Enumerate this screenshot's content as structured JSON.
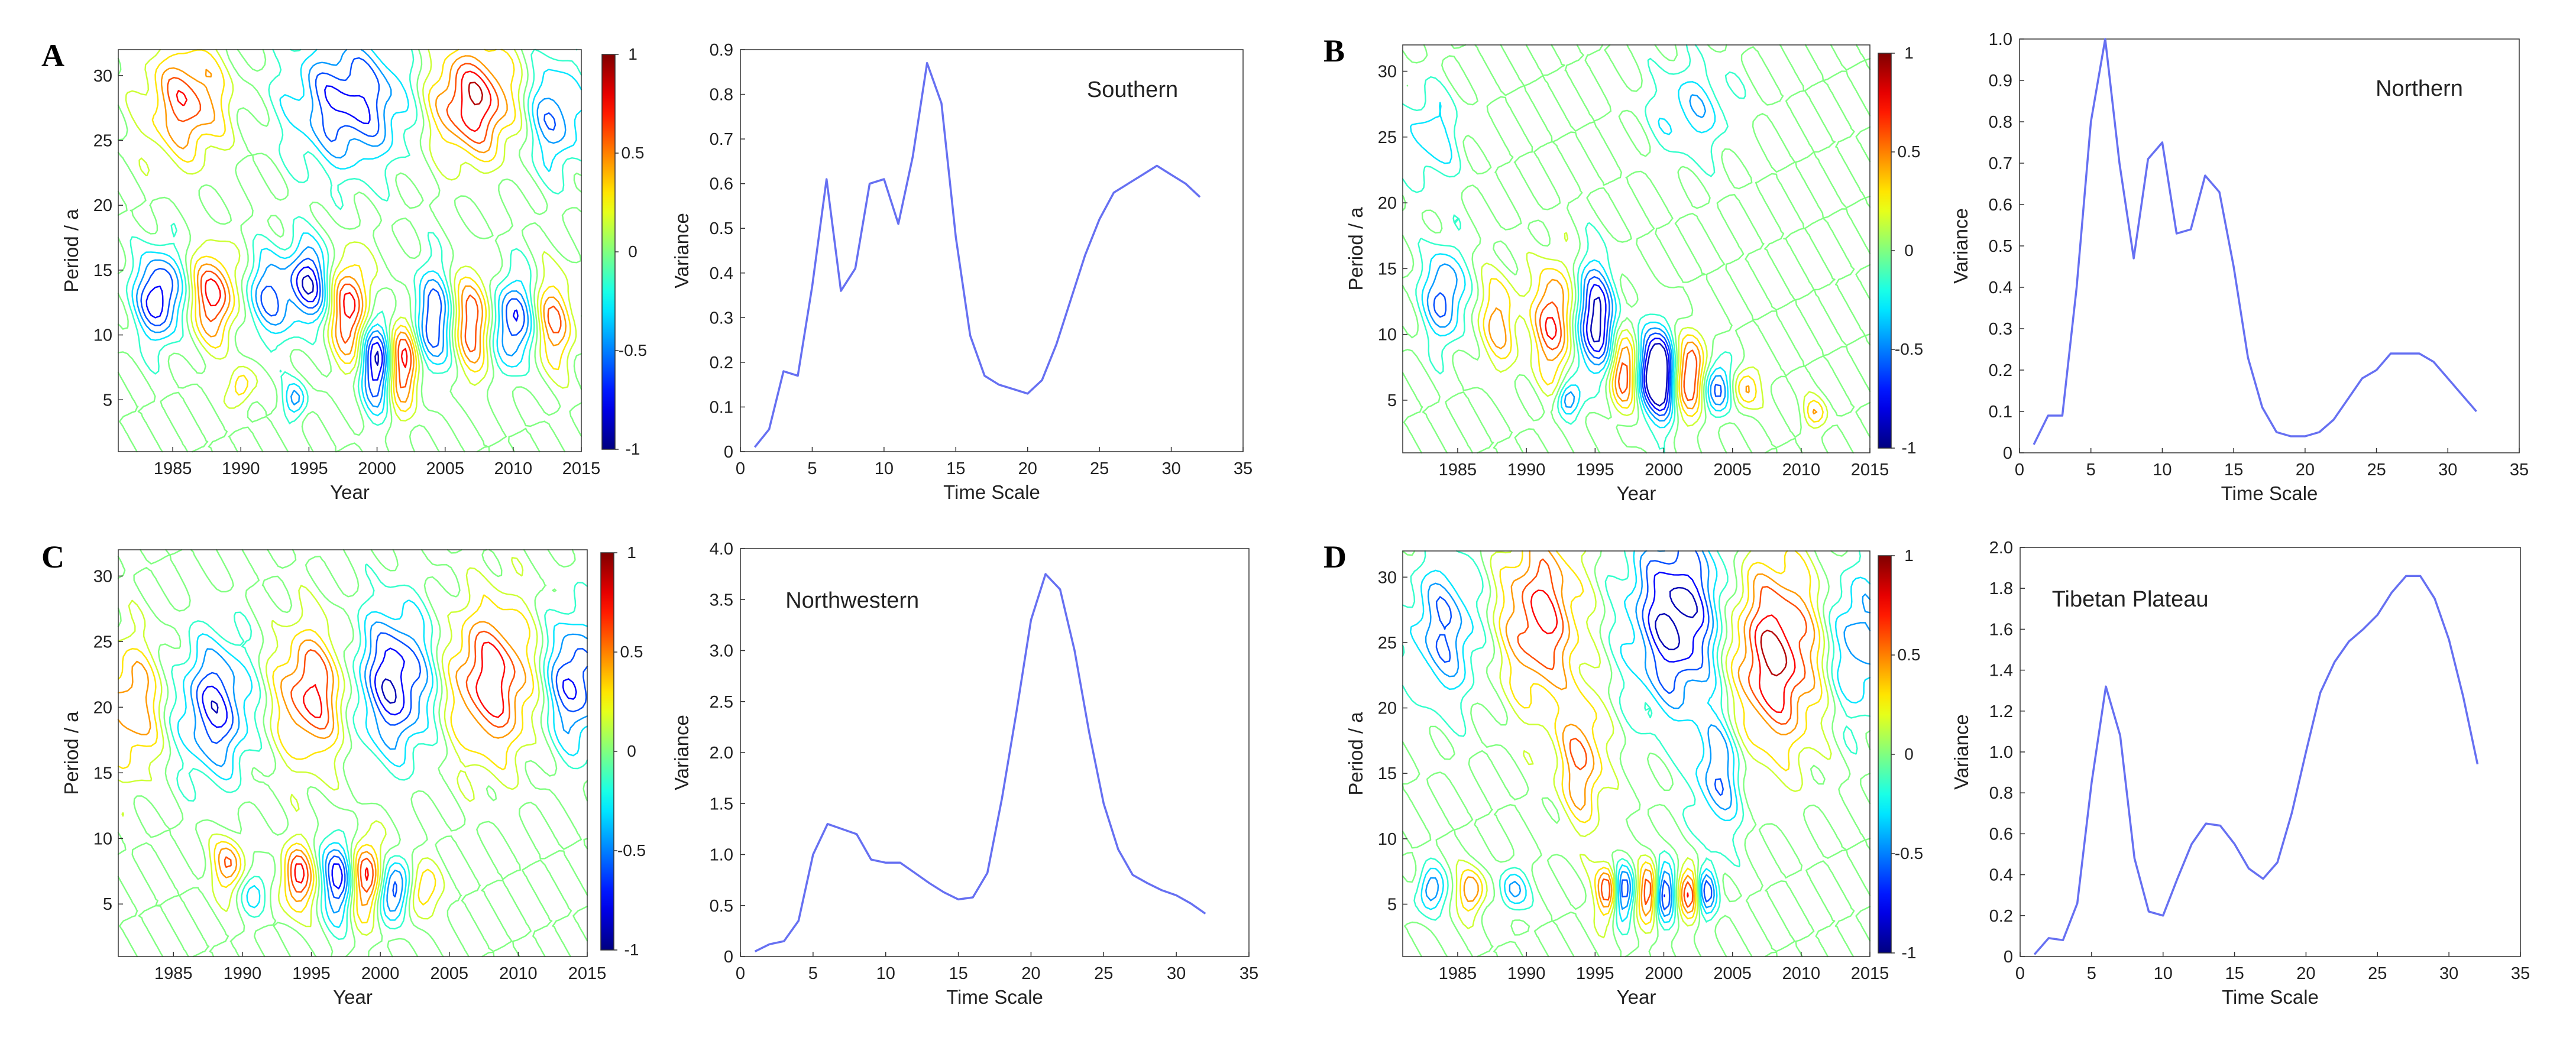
{
  "figure": {
    "panels": [
      {
        "letter": "A"
      },
      {
        "letter": "B"
      },
      {
        "letter": "C"
      },
      {
        "letter": "D"
      }
    ]
  },
  "chart_data": [
    {
      "panel": "A",
      "type": "heatmap",
      "title": "",
      "xlabel": "Year",
      "ylabel": "Period / a",
      "xlim": [
        1981,
        2015
      ],
      "ylim": [
        1,
        32
      ],
      "xticks": [
        1985,
        1990,
        1995,
        2000,
        2005,
        2010,
        2015
      ],
      "yticks": [
        5,
        10,
        15,
        20,
        25,
        30
      ],
      "colorbar": {
        "range": [
          -1,
          1
        ],
        "ticks": [
          1,
          0.5,
          0,
          -0.5,
          -1
        ],
        "tick_labels": [
          "1",
          "0.5",
          "0",
          "-0.5",
          "-1"
        ],
        "colormap": "jet"
      },
      "features": [
        {
          "x": 1984,
          "y": 13,
          "v": -0.9,
          "sx": 1.2,
          "sy": 2.4
        },
        {
          "x": 1988,
          "y": 13,
          "v": 0.8,
          "sx": 1.2,
          "sy": 2.4
        },
        {
          "x": 1992,
          "y": 13,
          "v": -0.6,
          "sx": 1.2,
          "sy": 2.4
        },
        {
          "x": 1995,
          "y": 14,
          "v": -0.85,
          "sx": 1.1,
          "sy": 2.2
        },
        {
          "x": 1998,
          "y": 12,
          "v": 0.85,
          "sx": 1.0,
          "sy": 2.8
        },
        {
          "x": 2000,
          "y": 8,
          "v": -1.0,
          "sx": 0.8,
          "sy": 2.5
        },
        {
          "x": 2002,
          "y": 8,
          "v": 0.95,
          "sx": 0.8,
          "sy": 2.5
        },
        {
          "x": 2004,
          "y": 11,
          "v": -0.8,
          "sx": 1.0,
          "sy": 2.8
        },
        {
          "x": 2007,
          "y": 11,
          "v": 0.7,
          "sx": 1.0,
          "sy": 2.8
        },
        {
          "x": 2010,
          "y": 11,
          "v": -0.8,
          "sx": 1.0,
          "sy": 2.5
        },
        {
          "x": 2013,
          "y": 11,
          "v": 0.6,
          "sx": 1.0,
          "sy": 2.5
        },
        {
          "x": 1986,
          "y": 28,
          "v": 0.7,
          "sx": 2.0,
          "sy": 3.0
        },
        {
          "x": 1998,
          "y": 28,
          "v": -0.8,
          "sx": 3.0,
          "sy": 3.5
        },
        {
          "x": 2007,
          "y": 28,
          "v": 0.9,
          "sx": 2.2,
          "sy": 3.0
        },
        {
          "x": 2013,
          "y": 27,
          "v": -0.6,
          "sx": 1.5,
          "sy": 3.0
        },
        {
          "x": 1990,
          "y": 6,
          "v": 0.5,
          "sx": 0.6,
          "sy": 1.0
        },
        {
          "x": 1994,
          "y": 5,
          "v": -0.5,
          "sx": 0.6,
          "sy": 1.0
        }
      ]
    },
    {
      "panel": "A",
      "type": "line",
      "title": "Southern",
      "xlabel": "Time Scale",
      "ylabel": "Variance",
      "xlim": [
        0,
        35
      ],
      "ylim": [
        0,
        0.9
      ],
      "xticks": [
        0,
        5,
        10,
        15,
        20,
        25,
        30,
        35
      ],
      "yticks": [
        0,
        0.1,
        0.2,
        0.3,
        0.4,
        0.5,
        0.6,
        0.7,
        0.8,
        0.9
      ],
      "ytick_labels": [
        "0",
        "0.1",
        "0.2",
        "0.3",
        "0.4",
        "0.5",
        "0.6",
        "0.7",
        "0.8",
        "0.9"
      ],
      "x": [
        1,
        2,
        3,
        4,
        5,
        6,
        7,
        8,
        9,
        10,
        11,
        12,
        13,
        14,
        15,
        16,
        17,
        18,
        19,
        20,
        21,
        22,
        23,
        24,
        25,
        26,
        27,
        28,
        29,
        30,
        31,
        32
      ],
      "values": [
        0.01,
        0.05,
        0.18,
        0.17,
        0.37,
        0.61,
        0.36,
        0.41,
        0.6,
        0.61,
        0.51,
        0.66,
        0.87,
        0.78,
        0.48,
        0.26,
        0.17,
        0.15,
        0.14,
        0.13,
        0.16,
        0.24,
        0.34,
        0.44,
        0.52,
        0.58,
        0.6,
        0.62,
        0.64,
        0.62,
        0.6,
        0.57
      ]
    },
    {
      "panel": "B",
      "type": "heatmap",
      "title": "",
      "xlabel": "Year",
      "ylabel": "Period / a",
      "xlim": [
        1981,
        2015
      ],
      "ylim": [
        1,
        32
      ],
      "xticks": [
        1985,
        1990,
        1995,
        2000,
        2005,
        2010,
        2015
      ],
      "yticks": [
        5,
        10,
        15,
        20,
        25,
        30
      ],
      "colorbar": {
        "range": [
          -1,
          1
        ],
        "ticks": [
          1,
          0.5,
          0,
          -0.5,
          -1
        ],
        "tick_labels": [
          "1",
          "0.5",
          "0",
          "-0.5",
          "-1"
        ],
        "colormap": "jet"
      },
      "features": [
        {
          "x": 1984,
          "y": 13,
          "v": -0.7,
          "sx": 1.0,
          "sy": 2.5
        },
        {
          "x": 1988,
          "y": 11,
          "v": 0.5,
          "sx": 1.0,
          "sy": 2.5
        },
        {
          "x": 1992,
          "y": 11,
          "v": 0.8,
          "sx": 1.0,
          "sy": 3.0
        },
        {
          "x": 1995,
          "y": 11,
          "v": -1.0,
          "sx": 1.0,
          "sy": 3.0
        },
        {
          "x": 1997,
          "y": 7,
          "v": 0.8,
          "sx": 0.7,
          "sy": 2.0
        },
        {
          "x": 1999,
          "y": 7,
          "v": -0.9,
          "sx": 0.7,
          "sy": 2.2
        },
        {
          "x": 2000,
          "y": 7,
          "v": -0.9,
          "sx": 0.6,
          "sy": 2.5
        },
        {
          "x": 2002,
          "y": 7,
          "v": 0.85,
          "sx": 0.7,
          "sy": 2.2
        },
        {
          "x": 2004,
          "y": 6,
          "v": -0.7,
          "sx": 0.7,
          "sy": 1.5
        },
        {
          "x": 2006,
          "y": 6,
          "v": 0.5,
          "sx": 0.7,
          "sy": 1.2
        },
        {
          "x": 1983,
          "y": 25,
          "v": -0.4,
          "sx": 1.5,
          "sy": 2.5
        },
        {
          "x": 2002,
          "y": 27,
          "v": -0.4,
          "sx": 2.0,
          "sy": 2.5
        },
        {
          "x": 1993,
          "y": 5,
          "v": -0.6,
          "sx": 0.6,
          "sy": 0.9
        },
        {
          "x": 2011,
          "y": 4,
          "v": 0.4,
          "sx": 0.6,
          "sy": 0.8
        }
      ]
    },
    {
      "panel": "B",
      "type": "line",
      "title": "Northern",
      "xlabel": "Time Scale",
      "ylabel": "Variance",
      "xlim": [
        0,
        35
      ],
      "ylim": [
        0,
        1.0
      ],
      "xticks": [
        0,
        5,
        10,
        15,
        20,
        25,
        30,
        35
      ],
      "yticks": [
        0,
        0.1,
        0.2,
        0.3,
        0.4,
        0.5,
        0.6,
        0.7,
        0.8,
        0.9,
        1.0
      ],
      "ytick_labels": [
        "0",
        "0.1",
        "0.2",
        "0.3",
        "0.4",
        "0.5",
        "0.6",
        "0.7",
        "0.8",
        "0.9",
        "1.0"
      ],
      "x": [
        1,
        2,
        3,
        4,
        5,
        6,
        7,
        8,
        9,
        10,
        11,
        12,
        13,
        14,
        15,
        16,
        17,
        18,
        19,
        20,
        21,
        22,
        23,
        24,
        25,
        26,
        27,
        28,
        29,
        30,
        31,
        32
      ],
      "values": [
        0.02,
        0.09,
        0.09,
        0.4,
        0.8,
        1.0,
        0.7,
        0.47,
        0.71,
        0.75,
        0.53,
        0.54,
        0.67,
        0.63,
        0.45,
        0.23,
        0.11,
        0.05,
        0.04,
        0.04,
        0.05,
        0.08,
        0.13,
        0.18,
        0.2,
        0.24,
        0.24,
        0.24,
        0.22,
        0.18,
        0.14,
        0.1
      ]
    },
    {
      "panel": "C",
      "type": "heatmap",
      "title": "",
      "xlabel": "Year",
      "ylabel": "Period / a",
      "xlim": [
        1981,
        2015
      ],
      "ylim": [
        1,
        32
      ],
      "xticks": [
        1985,
        1990,
        1995,
        2000,
        2005,
        2010,
        2015
      ],
      "yticks": [
        5,
        10,
        15,
        20,
        25,
        30
      ],
      "colorbar": {
        "range": [
          -1,
          1
        ],
        "ticks": [
          1,
          0.5,
          0,
          -0.5,
          -1
        ],
        "tick_labels": [
          "1",
          "0.5",
          "0",
          "-0.5",
          "-1"
        ],
        "colormap": "jet"
      },
      "features": [
        {
          "x": 1982,
          "y": 20,
          "v": 0.6,
          "sx": 1.5,
          "sy": 3.5
        },
        {
          "x": 1988,
          "y": 20,
          "v": -0.8,
          "sx": 1.8,
          "sy": 3.5
        },
        {
          "x": 1995,
          "y": 21,
          "v": 0.8,
          "sx": 1.8,
          "sy": 3.5
        },
        {
          "x": 2001,
          "y": 22,
          "v": -0.9,
          "sx": 2.0,
          "sy": 3.8
        },
        {
          "x": 2008,
          "y": 22,
          "v": 0.85,
          "sx": 2.2,
          "sy": 4.0
        },
        {
          "x": 2014,
          "y": 22,
          "v": -0.8,
          "sx": 1.5,
          "sy": 3.5
        },
        {
          "x": 1994,
          "y": 7,
          "v": 0.8,
          "sx": 0.8,
          "sy": 1.8
        },
        {
          "x": 1997,
          "y": 7,
          "v": -0.85,
          "sx": 0.8,
          "sy": 2.2
        },
        {
          "x": 1999,
          "y": 7,
          "v": 0.85,
          "sx": 0.8,
          "sy": 2.2
        },
        {
          "x": 2001,
          "y": 6,
          "v": -0.8,
          "sx": 0.8,
          "sy": 1.6
        },
        {
          "x": 2003,
          "y": 6,
          "v": 0.5,
          "sx": 0.8,
          "sy": 1.4
        },
        {
          "x": 1989,
          "y": 8,
          "v": 0.6,
          "sx": 0.8,
          "sy": 1.5
        },
        {
          "x": 1991,
          "y": 6,
          "v": -0.4,
          "sx": 0.7,
          "sy": 1.2
        }
      ]
    },
    {
      "panel": "C",
      "type": "line",
      "title": "Northwestern",
      "xlabel": "Time Scale",
      "ylabel": "Variance",
      "xlim": [
        0,
        35
      ],
      "ylim": [
        0,
        4.0
      ],
      "xticks": [
        0,
        5,
        10,
        15,
        20,
        25,
        30,
        35
      ],
      "yticks": [
        0,
        0.5,
        1.0,
        1.5,
        2.0,
        2.5,
        3.0,
        3.5,
        4.0
      ],
      "ytick_labels": [
        "0",
        "0.5",
        "1.0",
        "1.5",
        "2.0",
        "2.5",
        "3.0",
        "3.5",
        "4.0"
      ],
      "x": [
        1,
        2,
        3,
        4,
        5,
        6,
        7,
        8,
        9,
        10,
        11,
        12,
        13,
        14,
        15,
        16,
        17,
        18,
        19,
        20,
        21,
        22,
        23,
        24,
        25,
        26,
        27,
        28,
        29,
        30,
        31,
        32
      ],
      "values": [
        0.05,
        0.12,
        0.15,
        0.35,
        1.0,
        1.3,
        1.25,
        1.2,
        0.95,
        0.92,
        0.92,
        0.82,
        0.72,
        0.63,
        0.56,
        0.58,
        0.82,
        1.55,
        2.4,
        3.3,
        3.75,
        3.6,
        3.0,
        2.2,
        1.5,
        1.05,
        0.8,
        0.72,
        0.65,
        0.6,
        0.52,
        0.42
      ]
    },
    {
      "panel": "D",
      "type": "heatmap",
      "title": "",
      "xlabel": "Year",
      "ylabel": "Period / a",
      "xlim": [
        1981,
        2015
      ],
      "ylim": [
        1,
        32
      ],
      "xticks": [
        1985,
        1990,
        1995,
        2000,
        2005,
        2010,
        2015
      ],
      "yticks": [
        5,
        10,
        15,
        20,
        25,
        30
      ],
      "colorbar": {
        "range": [
          -1,
          1
        ],
        "ticks": [
          1,
          0.5,
          0,
          -0.5,
          -1
        ],
        "tick_labels": [
          "1",
          "0.5",
          "0",
          "-0.5",
          "-1"
        ],
        "colormap": "jet"
      },
      "features": [
        {
          "x": 1984,
          "y": 26,
          "v": -0.6,
          "sx": 1.8,
          "sy": 4.0
        },
        {
          "x": 1991,
          "y": 27,
          "v": 0.8,
          "sx": 2.0,
          "sy": 4.5
        },
        {
          "x": 2001,
          "y": 27,
          "v": -1.0,
          "sx": 2.4,
          "sy": 5.0
        },
        {
          "x": 2008,
          "y": 24,
          "v": 0.95,
          "sx": 2.4,
          "sy": 5.0
        },
        {
          "x": 2014,
          "y": 25,
          "v": -0.6,
          "sx": 1.5,
          "sy": 4.0
        },
        {
          "x": 1994,
          "y": 16,
          "v": 0.6,
          "sx": 1.2,
          "sy": 3.5
        },
        {
          "x": 2004,
          "y": 15,
          "v": -0.6,
          "sx": 1.2,
          "sy": 3.5
        },
        {
          "x": 1996,
          "y": 6,
          "v": 0.9,
          "sx": 0.6,
          "sy": 1.5
        },
        {
          "x": 1997,
          "y": 6,
          "v": -0.9,
          "sx": 0.6,
          "sy": 1.5
        },
        {
          "x": 1999,
          "y": 6,
          "v": 0.95,
          "sx": 0.6,
          "sy": 1.6
        },
        {
          "x": 2000,
          "y": 6,
          "v": -0.95,
          "sx": 0.6,
          "sy": 1.6
        },
        {
          "x": 2002,
          "y": 6,
          "v": 0.9,
          "sx": 0.6,
          "sy": 1.5
        },
        {
          "x": 2003,
          "y": 6,
          "v": -0.8,
          "sx": 0.6,
          "sy": 1.4
        },
        {
          "x": 1983,
          "y": 6,
          "v": -0.6,
          "sx": 0.7,
          "sy": 1.2
        },
        {
          "x": 1986,
          "y": 6,
          "v": 0.6,
          "sx": 0.7,
          "sy": 1.2
        },
        {
          "x": 1989,
          "y": 6,
          "v": -0.5,
          "sx": 0.7,
          "sy": 1.2
        }
      ]
    },
    {
      "panel": "D",
      "type": "line",
      "title": "Tibetan Plateau",
      "xlabel": "Time Scale",
      "ylabel": "Variance",
      "xlim": [
        0,
        35
      ],
      "ylim": [
        0,
        2.0
      ],
      "xticks": [
        0,
        5,
        10,
        15,
        20,
        25,
        30,
        35
      ],
      "yticks": [
        0,
        0.2,
        0.4,
        0.6,
        0.8,
        1.0,
        1.2,
        1.4,
        1.6,
        1.8,
        2.0
      ],
      "ytick_labels": [
        "0",
        "0.2",
        "0.4",
        "0.6",
        "0.8",
        "1.0",
        "1.2",
        "1.4",
        "1.6",
        "1.8",
        "2.0"
      ],
      "x": [
        1,
        2,
        3,
        4,
        5,
        6,
        7,
        8,
        9,
        10,
        11,
        12,
        13,
        14,
        15,
        16,
        17,
        18,
        19,
        20,
        21,
        22,
        23,
        24,
        25,
        26,
        27,
        28,
        29,
        30,
        31,
        32
      ],
      "values": [
        0.01,
        0.09,
        0.08,
        0.26,
        0.85,
        1.32,
        1.08,
        0.48,
        0.22,
        0.2,
        0.38,
        0.55,
        0.65,
        0.64,
        0.55,
        0.43,
        0.38,
        0.46,
        0.7,
        1.0,
        1.29,
        1.44,
        1.54,
        1.6,
        1.67,
        1.78,
        1.86,
        1.86,
        1.75,
        1.55,
        1.27,
        0.94
      ]
    }
  ]
}
